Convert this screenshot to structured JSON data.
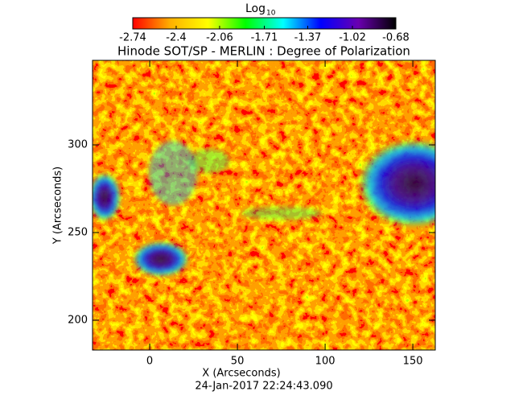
{
  "chart_data": {
    "type": "heatmap",
    "title": "Hinode SOT/SP - MERLIN : Degree of Polarization",
    "xlabel": "X (Arcseconds)",
    "ylabel": "Y (Arcseconds)",
    "footer": "24-Jan-2017 22:24:43.090",
    "xlim": [
      -32.6,
      162.8
    ],
    "xticks": [
      0,
      50,
      100,
      150
    ],
    "ylim": [
      183.0,
      348.2
    ],
    "yticks": [
      200,
      250,
      300
    ],
    "colorbar": {
      "label": "Log",
      "label_subscript": "10",
      "lim": [
        -2.74,
        -0.68
      ],
      "ticks": [
        -2.74,
        -2.4,
        -2.06,
        -1.71,
        -1.37,
        -1.02,
        -0.68
      ],
      "colors": [
        "#ff0000",
        "#ffb000",
        "#ffff00",
        "#00ff00",
        "#00ffff",
        "#0000ff",
        "#6a00b0",
        "#000000"
      ]
    }
  }
}
